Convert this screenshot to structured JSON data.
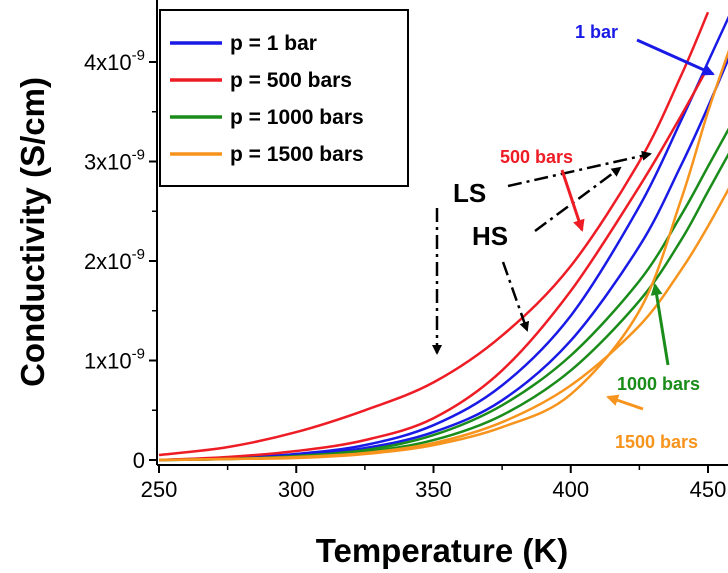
{
  "chart_data": {
    "type": "line",
    "xlabel": "Temperature (K)",
    "ylabel": "Conductivity (S/cm)",
    "xlim": [
      250,
      460
    ],
    "ylim": [
      -5e-11,
      4.45e-09
    ],
    "x_ticks": [
      250,
      300,
      350,
      400,
      450
    ],
    "x_tick_labels": [
      "250",
      "300",
      "350",
      "400",
      "450"
    ],
    "y_ticks": [
      0,
      1e-09,
      2e-09,
      3e-09,
      4e-09
    ],
    "y_tick_labels": [
      {
        "mantissa": "0",
        "exponent": ""
      },
      {
        "mantissa": "1x10",
        "exponent": "-9"
      },
      {
        "mantissa": "2x10",
        "exponent": "-9"
      },
      {
        "mantissa": "3x10",
        "exponent": "-9"
      },
      {
        "mantissa": "4x10",
        "exponent": "-9"
      }
    ],
    "legend_position": "top-left",
    "series": [
      {
        "name": "p = 1 bar",
        "color": "#1a1ae6",
        "curves": [
          {
            "x": [
              250,
              275,
              300,
              325,
              350,
              375,
              400,
              425,
              440,
              450,
              460
            ],
            "y": [
              0.0,
              2e-11,
              6e-11,
              1.5e-10,
              3.5e-10,
              7.5e-10,
              1.45e-09,
              2.55e-09,
              3.4e-09,
              4e-09,
              4.6e-09
            ]
          },
          {
            "x": [
              250,
              275,
              300,
              325,
              350,
              375,
              400,
              425,
              440,
              450,
              460
            ],
            "y": [
              0.0,
              2e-11,
              5e-11,
              1.2e-10,
              2.8e-10,
              6e-10,
              1.2e-09,
              2.15e-09,
              2.95e-09,
              3.55e-09,
              4.2e-09
            ]
          }
        ]
      },
      {
        "name": "p = 500 bars",
        "color": "#ee1c25",
        "curves": [
          {
            "x": [
              250,
              275,
              300,
              325,
              350,
              375,
              400,
              425,
              440,
              450
            ],
            "y": [
              5e-11,
              1.3e-10,
              2.8e-10,
              5e-10,
              7.8e-10,
              1.25e-09,
              1.95e-09,
              3e-09,
              3.85e-09,
              4.5e-09
            ]
          },
          {
            "x": [
              250,
              275,
              300,
              325,
              350,
              375,
              400,
              425,
              440,
              450
            ],
            "y": [
              0.0,
              3e-11,
              9e-11,
              2e-10,
              4.2e-10,
              9e-10,
              1.7e-09,
              2.75e-09,
              3.45e-09,
              3.95e-09
            ]
          }
        ]
      },
      {
        "name": "p = 1000 bars",
        "color": "#1a8c1a",
        "curves": [
          {
            "x": [
              250,
              275,
              300,
              325,
              350,
              375,
              400,
              425,
              440,
              450,
              460
            ],
            "y": [
              0.0,
              1e-11,
              4e-11,
              1e-10,
              2.5e-10,
              5.5e-10,
              1.05e-09,
              1.8e-09,
              2.45e-09,
              2.95e-09,
              3.45e-09
            ]
          },
          {
            "x": [
              250,
              275,
              300,
              325,
              350,
              375,
              400,
              425,
              440,
              450,
              460
            ],
            "y": [
              0.0,
              1e-11,
              3e-11,
              8e-11,
              2e-10,
              4.5e-10,
              9e-10,
              1.6e-09,
              2.2e-09,
              2.7e-09,
              3.2e-09
            ]
          }
        ]
      },
      {
        "name": "p = 1500 bars",
        "color": "#f7941d",
        "curves": [
          {
            "x": [
              250,
              275,
              300,
              325,
              350,
              375,
              400,
              425,
              440,
              450,
              460
            ],
            "y": [
              0.0,
              1e-11,
              3e-11,
              7e-11,
              1.7e-10,
              3.8e-10,
              7.5e-10,
              1.35e-09,
              1.9e-09,
              2.35e-09,
              2.85e-09
            ]
          },
          {
            "x": [
              250,
              275,
              300,
              325,
              350,
              375,
              400,
              425,
              440,
              450,
              460
            ],
            "y": [
              0.0,
              1e-11,
              2e-11,
              6e-11,
              1.5e-10,
              3.3e-10,
              6.6e-10,
              1.5e-09,
              2.6e-09,
              3.5e-09,
              4.3e-09
            ]
          }
        ]
      }
    ],
    "annotations": [
      {
        "text": "1 bar",
        "color": "#1a1ae6"
      },
      {
        "text": "500 bars",
        "color": "#ee1c25"
      },
      {
        "text": "1000 bars",
        "color": "#1a8c1a"
      },
      {
        "text": "1500 bars",
        "color": "#f7941d"
      },
      {
        "text": "LS",
        "color": "#000000"
      },
      {
        "text": "HS",
        "color": "#000000"
      }
    ]
  }
}
